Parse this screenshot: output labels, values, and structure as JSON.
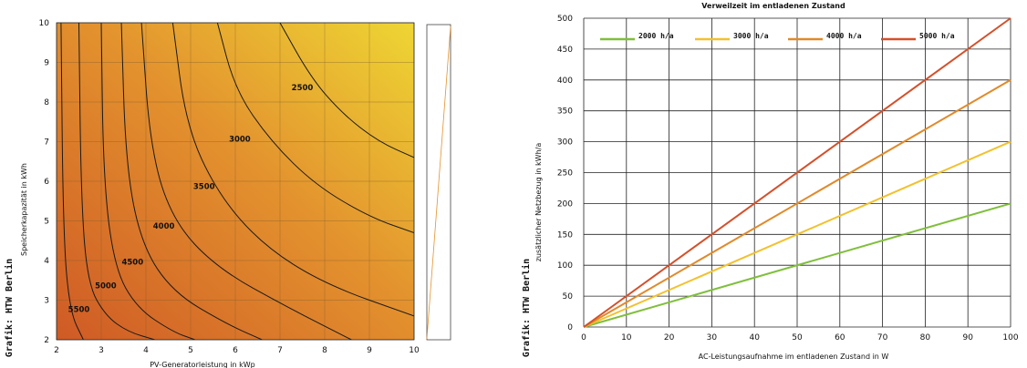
{
  "chart_data": [
    {
      "type": "heatmap",
      "title": "",
      "xlabel": "PV-Generatorleistung in kWp",
      "ylabel": "Speicherkapazität in kWh",
      "credit": "Grafik: HTW Berlin",
      "xlim": [
        2,
        10
      ],
      "ylim": [
        2,
        10
      ],
      "xticks": [
        "2",
        "3",
        "4",
        "5",
        "6",
        "7",
        "8",
        "9",
        "10"
      ],
      "yticks": [
        "2",
        "3",
        "4",
        "5",
        "6",
        "7",
        "8",
        "9",
        "10"
      ],
      "grid": true,
      "contour_labels": [
        {
          "text": "2500",
          "x": 7.5,
          "y": 8.3
        },
        {
          "text": "3000",
          "x": 6.1,
          "y": 7.0
        },
        {
          "text": "3500",
          "x": 5.3,
          "y": 5.8
        },
        {
          "text": "4000",
          "x": 4.4,
          "y": 4.8
        },
        {
          "text": "4500",
          "x": 3.7,
          "y": 3.9
        },
        {
          "text": "5000",
          "x": 3.1,
          "y": 3.3
        },
        {
          "text": "5500",
          "x": 2.5,
          "y": 2.7
        }
      ],
      "contour_lines": [
        {
          "level": 2500,
          "x": [
            7.0,
            7.7,
            8.4,
            9.2,
            10.0
          ],
          "y": [
            10.0,
            8.6,
            7.7,
            7.0,
            6.6
          ]
        },
        {
          "level": 3000,
          "x": [
            5.6,
            6.0,
            6.8,
            7.8,
            9.0,
            10.0
          ],
          "y": [
            10.0,
            8.3,
            7.0,
            5.9,
            5.1,
            4.7
          ]
        },
        {
          "level": 3500,
          "x": [
            4.6,
            4.9,
            5.6,
            6.6,
            8.0,
            10.0
          ],
          "y": [
            10.0,
            7.4,
            5.7,
            4.4,
            3.4,
            2.6
          ]
        },
        {
          "level": 4000,
          "x": [
            3.9,
            4.1,
            4.6,
            5.6,
            7.2,
            8.6
          ],
          "y": [
            10.0,
            6.8,
            5.0,
            3.8,
            2.8,
            2.0
          ]
        },
        {
          "level": 4500,
          "x": [
            3.45,
            3.55,
            3.9,
            4.6,
            5.8,
            6.6
          ],
          "y": [
            10.0,
            6.4,
            4.4,
            3.2,
            2.4,
            2.0
          ]
        },
        {
          "level": 5000,
          "x": [
            3.0,
            3.05,
            3.3,
            3.8,
            4.6,
            5.1
          ],
          "y": [
            10.0,
            6.0,
            3.8,
            2.8,
            2.2,
            2.0
          ]
        },
        {
          "level": 5500,
          "x": [
            2.5,
            2.55,
            2.7,
            3.1,
            3.6,
            4.2
          ],
          "y": [
            10.0,
            5.5,
            3.4,
            2.6,
            2.2,
            2.0
          ]
        },
        {
          "level": 6000,
          "x": [
            2.1,
            2.15,
            2.3,
            2.6
          ],
          "y": [
            10.0,
            4.6,
            2.7,
            2.0
          ]
        }
      ],
      "colors": {
        "low": "#eed634",
        "high": "#cf5a25"
      }
    },
    {
      "type": "line",
      "title": "Verweilzeit im entladenen Zustand",
      "xlabel": "AC-Leistungsaufnahme im entladenen Zustand in W",
      "ylabel": "zusätzlicher Netzbezug in kWh/a",
      "credit": "Grafik: HTW Berlin",
      "xlim": [
        0,
        100
      ],
      "ylim": [
        0,
        500
      ],
      "xticks": [
        "0",
        "10",
        "20",
        "30",
        "40",
        "50",
        "60",
        "70",
        "80",
        "90",
        "100"
      ],
      "yticks": [
        "0",
        "50",
        "100",
        "150",
        "200",
        "250",
        "300",
        "350",
        "400",
        "450",
        "500"
      ],
      "grid": true,
      "legend": "top",
      "x": [
        0,
        100
      ],
      "series": [
        {
          "name": "2000 h/a",
          "values": [
            0,
            200
          ],
          "color": "#7fbf3a"
        },
        {
          "name": "3000 h/a",
          "values": [
            0,
            300
          ],
          "color": "#f2c12e"
        },
        {
          "name": "4000 h/a",
          "values": [
            0,
            400
          ],
          "color": "#e08a2a"
        },
        {
          "name": "5000 h/a",
          "values": [
            0,
            500
          ],
          "color": "#d4502a"
        }
      ]
    }
  ]
}
